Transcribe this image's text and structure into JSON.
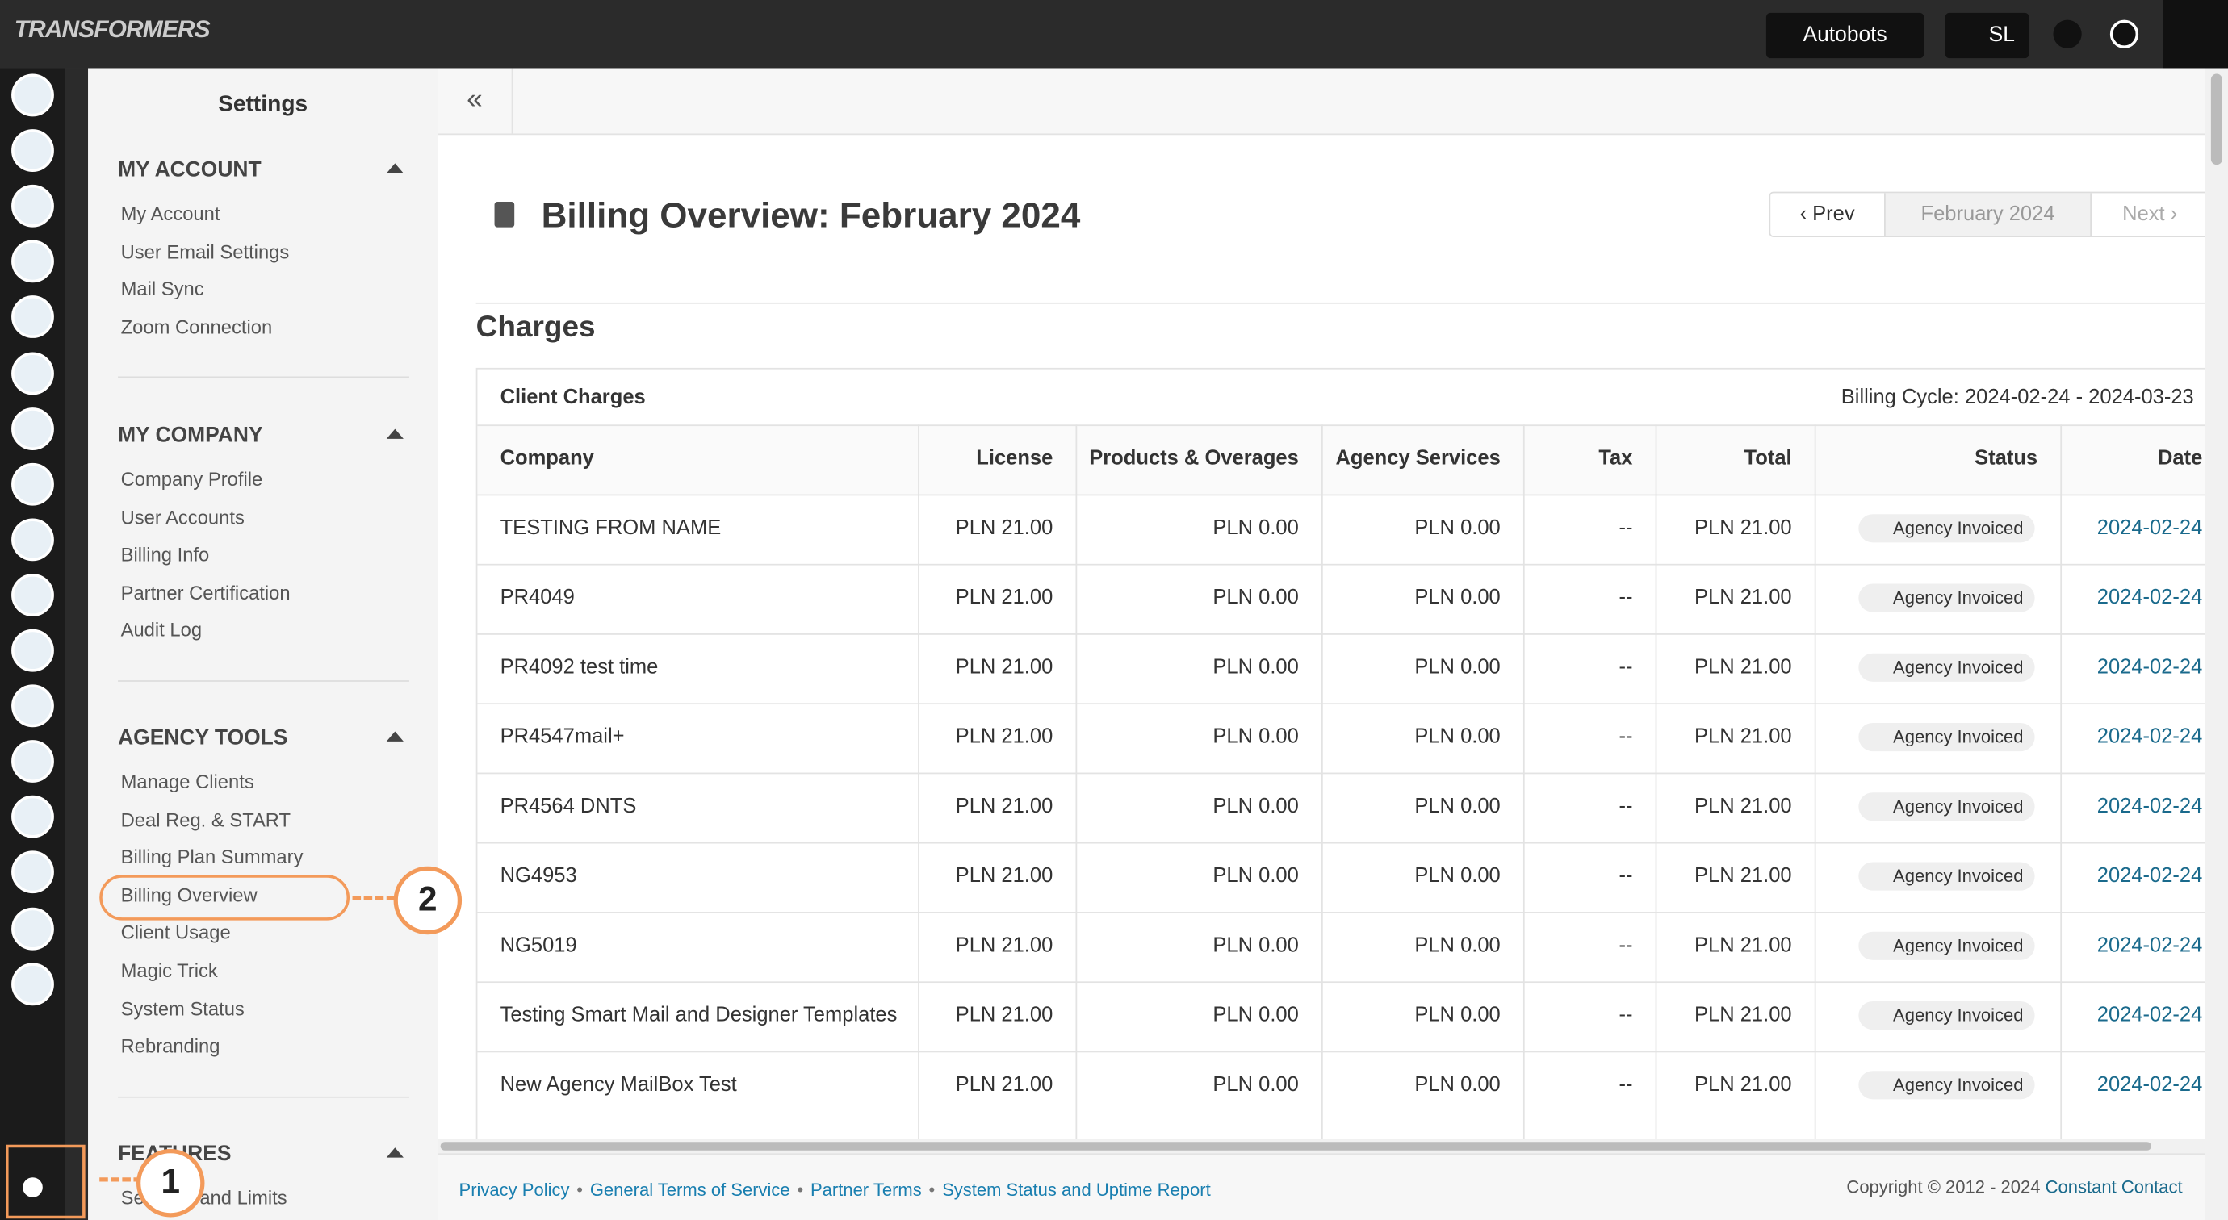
{
  "header": {
    "logo": "TRANSFORMERS",
    "account_button": "Autobots",
    "user_button": "SL"
  },
  "sidebar": {
    "title": "Settings",
    "sections": [
      {
        "heading": "MY ACCOUNT",
        "items": [
          "My Account",
          "User Email Settings",
          "Mail Sync",
          "Zoom Connection"
        ]
      },
      {
        "heading": "MY COMPANY",
        "items": [
          "Company Profile",
          "User Accounts",
          "Billing Info",
          "Partner Certification",
          "Audit Log"
        ]
      },
      {
        "heading": "AGENCY TOOLS",
        "items": [
          "Manage Clients",
          "Deal Reg. & START",
          "Billing Plan Summary",
          "Billing Overview",
          "Client Usage",
          "Magic Trick",
          "System Status",
          "Rebranding"
        ]
      },
      {
        "heading": "FEATURES",
        "items": [
          "Services and Limits"
        ]
      }
    ]
  },
  "annotations": [
    "1",
    "2"
  ],
  "main": {
    "title": "Billing Overview: February 2024",
    "prev": "Prev",
    "period": "February 2024",
    "next": "Next",
    "section": "Charges",
    "table": {
      "caption": "Client Charges",
      "billing_cycle": "Billing Cycle: 2024-02-24 - 2024-03-23",
      "columns": [
        "Company",
        "License",
        "Products & Overages",
        "Agency Services",
        "Tax",
        "Total",
        "Status",
        "Date"
      ],
      "rows": [
        [
          "TESTING FROM NAME",
          "PLN 21.00",
          "PLN 0.00",
          "PLN 0.00",
          "--",
          "PLN 21.00",
          "Agency Invoiced",
          "2024-02-24"
        ],
        [
          "PR4049",
          "PLN 21.00",
          "PLN 0.00",
          "PLN 0.00",
          "--",
          "PLN 21.00",
          "Agency Invoiced",
          "2024-02-24"
        ],
        [
          "PR4092 test time",
          "PLN 21.00",
          "PLN 0.00",
          "PLN 0.00",
          "--",
          "PLN 21.00",
          "Agency Invoiced",
          "2024-02-24"
        ],
        [
          "PR4547mail+",
          "PLN 21.00",
          "PLN 0.00",
          "PLN 0.00",
          "--",
          "PLN 21.00",
          "Agency Invoiced",
          "2024-02-24"
        ],
        [
          "PR4564 DNTS",
          "PLN 21.00",
          "PLN 0.00",
          "PLN 0.00",
          "--",
          "PLN 21.00",
          "Agency Invoiced",
          "2024-02-24"
        ],
        [
          "NG4953",
          "PLN 21.00",
          "PLN 0.00",
          "PLN 0.00",
          "--",
          "PLN 21.00",
          "Agency Invoiced",
          "2024-02-24"
        ],
        [
          "NG5019",
          "PLN 21.00",
          "PLN 0.00",
          "PLN 0.00",
          "--",
          "PLN 21.00",
          "Agency Invoiced",
          "2024-02-24"
        ],
        [
          "Testing Smart Mail and Designer Templates",
          "PLN 21.00",
          "PLN 0.00",
          "PLN 0.00",
          "--",
          "PLN 21.00",
          "Agency Invoiced",
          "2024-02-24"
        ],
        [
          "New Agency MailBox Test",
          "PLN 21.00",
          "PLN 0.00",
          "PLN 0.00",
          "--",
          "PLN 21.00",
          "Agency Invoiced",
          "2024-02-24"
        ]
      ]
    }
  },
  "footer": {
    "links": [
      "Privacy Policy",
      "General Terms of Service",
      "Partner Terms",
      "System Status and Uptime Report"
    ],
    "copyright": "Copyright © 2012 - 2024",
    "brand": "Constant Contact"
  }
}
